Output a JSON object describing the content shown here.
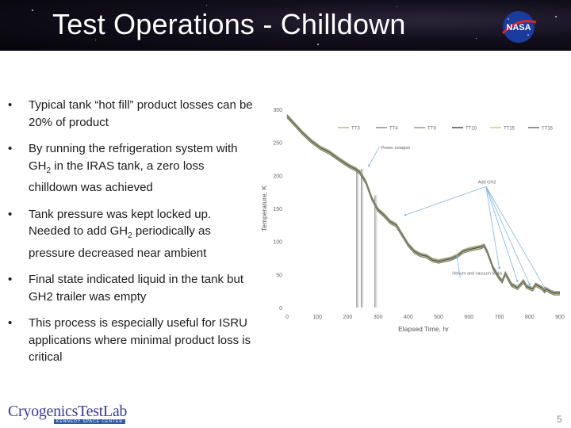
{
  "slide": {
    "title": "Test Operations - Chilldown",
    "page_number": "5",
    "logo_text": "CryogenicsTestLab",
    "logo_subtext": "KENNEDY SPACE CENTER",
    "nasa_logo_text": "NASA"
  },
  "bullets": [
    {
      "parts": [
        "Typical tank “hot fill” product losses can be 20% of product"
      ]
    },
    {
      "parts": [
        "By running the refrigeration system with GH",
        "2",
        " in the IRAS tank, a zero loss chilldown was achieved"
      ]
    },
    {
      "parts": [
        "Tank pressure was kept locked up. Needed to add GH",
        "2",
        " periodically as pressure decreased near ambient"
      ]
    },
    {
      "parts": [
        "Final state indicated liquid in the tank but GH2 trailer was empty"
      ]
    },
    {
      "parts": [
        "This process is especially useful for ISRU applications where minimal product loss is critical"
      ]
    }
  ],
  "chart_data": {
    "type": "line",
    "title": "",
    "xlabel": "Elapsed Time, hr",
    "ylabel": "Temperature, K",
    "xlim": [
      0,
      900
    ],
    "ylim": [
      0,
      300
    ],
    "xticks": [
      0,
      100,
      200,
      300,
      400,
      500,
      600,
      700,
      800,
      900
    ],
    "yticks": [
      0,
      50,
      100,
      150,
      200,
      250,
      300
    ],
    "grid": false,
    "legend_position": "top",
    "series": [
      {
        "name": "TT3",
        "color": "#b4b88a"
      },
      {
        "name": "TT4",
        "color": "#8a8a8a"
      },
      {
        "name": "TT9",
        "color": "#9a9a7a"
      },
      {
        "name": "TT10",
        "color": "#4a4a4a"
      },
      {
        "name": "TT15",
        "color": "#c8d07a"
      },
      {
        "name": "TT16",
        "color": "#6e6e6e"
      }
    ],
    "curve": {
      "x": [
        0,
        20,
        50,
        80,
        110,
        140,
        170,
        200,
        215,
        225,
        240,
        260,
        280,
        300,
        320,
        340,
        360,
        380,
        400,
        420,
        440,
        460,
        480,
        500,
        520,
        540,
        560,
        580,
        600,
        620,
        640,
        650,
        660,
        680,
        700,
        710,
        720,
        740,
        760,
        780,
        790,
        800,
        810,
        820,
        840,
        850,
        855,
        870,
        880,
        900
      ],
      "y": [
        290,
        280,
        265,
        252,
        242,
        235,
        225,
        216,
        212,
        210,
        205,
        190,
        165,
        148,
        140,
        130,
        125,
        110,
        95,
        85,
        80,
        78,
        72,
        70,
        72,
        74,
        78,
        85,
        88,
        90,
        92,
        94,
        85,
        60,
        45,
        40,
        52,
        35,
        30,
        40,
        32,
        30,
        28,
        35,
        30,
        25,
        28,
        24,
        22,
        22
      ]
    },
    "outages": [
      {
        "x": 230,
        "y0": 0,
        "y1": 210
      },
      {
        "x": 245,
        "y0": 0,
        "y1": 210
      },
      {
        "x": 290,
        "y0": 0,
        "y1": 170
      }
    ],
    "annotations": [
      {
        "text": "Power outages",
        "x": 310,
        "y": 240,
        "target": [
          270,
          215
        ]
      },
      {
        "text": "Add GH2",
        "x": 630,
        "y": 188,
        "targets": [
          [
            390,
            140
          ],
          [
            700,
            60
          ],
          [
            760,
            40
          ],
          [
            800,
            35
          ],
          [
            850,
            30
          ]
        ]
      },
      {
        "text": "Helium and vacuum leaks",
        "x": 545,
        "y": 50,
        "targets": [
          [
            560,
            78
          ]
        ]
      }
    ]
  }
}
